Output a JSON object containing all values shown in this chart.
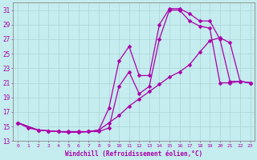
{
  "xlabel": "Windchill (Refroidissement éolien,°C)",
  "bg_color": "#c5ecee",
  "grid_color": "#aad4d8",
  "line_color": "#aa00aa",
  "xlim": [
    -0.5,
    23.4
  ],
  "ylim": [
    13,
    32
  ],
  "xticks": [
    0,
    1,
    2,
    3,
    4,
    5,
    6,
    7,
    8,
    9,
    10,
    11,
    12,
    13,
    14,
    15,
    16,
    17,
    18,
    19,
    20,
    21,
    22,
    23
  ],
  "yticks": [
    13,
    15,
    17,
    19,
    21,
    23,
    25,
    27,
    29,
    31
  ],
  "curve1_x": [
    0,
    1,
    2,
    3,
    4,
    5,
    6,
    7,
    8,
    9,
    10,
    11,
    12,
    13,
    14,
    15,
    16,
    17,
    18,
    19,
    20,
    21,
    22,
    23
  ],
  "curve1_y": [
    15.5,
    14.8,
    14.5,
    14.4,
    14.3,
    14.3,
    14.3,
    14.3,
    14.5,
    17.5,
    24.0,
    26.0,
    22.0,
    22.0,
    29.0,
    31.2,
    31.2,
    30.5,
    29.5,
    29.5,
    27.0,
    21.2,
    21.2,
    21.0
  ],
  "curve2_x": [
    0,
    2,
    3,
    4,
    5,
    6,
    7,
    8,
    9,
    10,
    11,
    12,
    13,
    14,
    15,
    16,
    17,
    18,
    19,
    20,
    21,
    22,
    23
  ],
  "curve2_y": [
    15.5,
    14.5,
    14.4,
    14.3,
    14.2,
    14.2,
    14.3,
    14.3,
    14.8,
    20.5,
    22.5,
    19.5,
    20.5,
    27.0,
    31.0,
    31.0,
    29.5,
    28.8,
    28.5,
    21.0,
    21.0,
    21.2,
    21.0
  ],
  "curve3_x": [
    0,
    2,
    3,
    4,
    5,
    6,
    7,
    8,
    9,
    10,
    11,
    12,
    13,
    14,
    15,
    16,
    17,
    18,
    19,
    20,
    21,
    22,
    23
  ],
  "curve3_y": [
    15.5,
    14.5,
    14.4,
    14.3,
    14.2,
    14.2,
    14.3,
    14.5,
    15.5,
    16.5,
    17.8,
    18.8,
    19.8,
    20.8,
    21.8,
    22.5,
    23.5,
    25.2,
    26.8,
    27.2,
    26.5,
    21.2,
    21.0
  ]
}
